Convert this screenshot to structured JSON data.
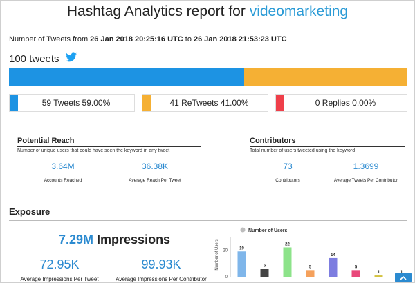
{
  "title": {
    "prefix": "Hashtag Analytics report for ",
    "keyword": "videomarketing"
  },
  "range": {
    "prefix": "Number of Tweets from ",
    "start": "26 Jan 2018 20:25:16 UTC",
    "middle": " to ",
    "end": "26 Jan 2018 21:53:23 UTC"
  },
  "tweets_total": "100 tweets",
  "breakdown": {
    "tweets": {
      "label": "59 Tweets 59.00%",
      "fraction": 0.59,
      "color": "#1d93e3"
    },
    "retweets": {
      "label": "41 ReTweets 41.00%",
      "fraction": 0.41,
      "color": "#f5b034"
    },
    "replies": {
      "label": "0 Replies 0.00%",
      "fraction": 0.0,
      "color": "#ef3f4a"
    }
  },
  "potential_reach": {
    "heading": "Potential Reach",
    "description": "Number of unique users that could have seen the keyword in any tweet",
    "accounts_reached": {
      "value": "3.64M",
      "label": "Accounts Reached"
    },
    "avg_reach": {
      "value": "36.38K",
      "label": "Average Reach Per Tweet"
    }
  },
  "contributors": {
    "heading": "Contributors",
    "description": "Total number of users tweeted using the keyword",
    "count": {
      "value": "73",
      "label": "Contributors"
    },
    "avg_tweets": {
      "value": "1.3699",
      "label": "Average Tweets Per Contributor"
    }
  },
  "exposure": {
    "heading": "Exposure",
    "impressions_value": "7.29M",
    "impressions_label": " Impressions",
    "avg_per_tweet": {
      "value": "72.95K",
      "label": "Average Impressions Per Tweet"
    },
    "avg_per_contributor": {
      "value": "99.93K",
      "label": "Average Impressions Per Contributor"
    }
  },
  "chart_data": {
    "type": "bar",
    "legend": "Number of Users",
    "ylabel": "Number of Users",
    "yticks": [
      0,
      20
    ],
    "ylim": [
      0,
      30
    ],
    "values": [
      19,
      6,
      22,
      5,
      14,
      5,
      1,
      1
    ],
    "colors": [
      "#7fb6ea",
      "#444444",
      "#8de38a",
      "#f5a15c",
      "#7d7de0",
      "#e9487a",
      "#d4c341",
      "#3f8f8f"
    ]
  }
}
